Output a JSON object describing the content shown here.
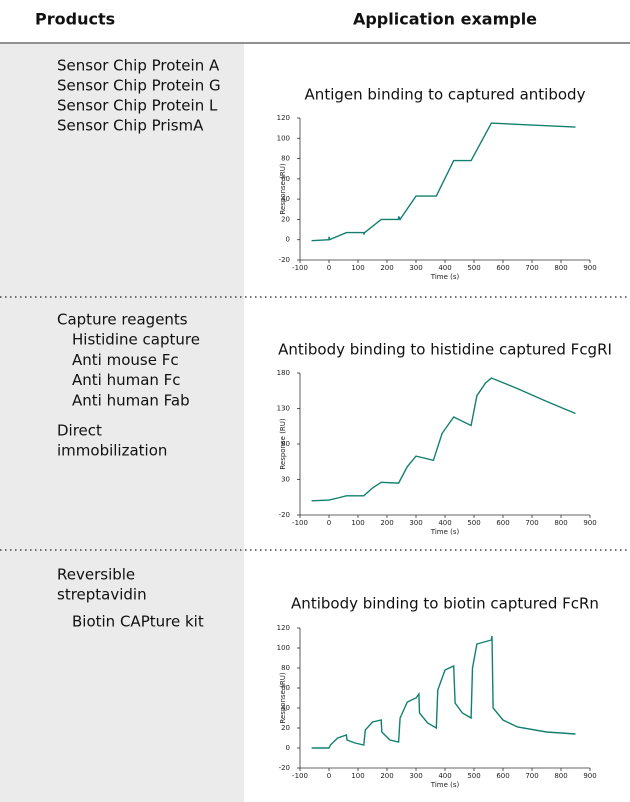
{
  "header": {
    "products": "Products",
    "application": "Application example"
  },
  "rows": [
    {
      "products": [
        {
          "lines": [
            "Sensor Chip Protein A",
            "Sensor Chip Protein G",
            "Sensor Chip Protein L",
            "Sensor Chip PrismA"
          ]
        }
      ],
      "chart": {
        "type": "line",
        "title": "Antigen binding to captured antibody",
        "xlabel": "Time (s)",
        "ylabel": "Response (RU)",
        "color": "#13806f",
        "x": [
          -60,
          0,
          0,
          2,
          60,
          120,
          120,
          123,
          180,
          240,
          240,
          245,
          300,
          370,
          430,
          490,
          560,
          850
        ],
        "values": [
          -1,
          0,
          3,
          0,
          7,
          7,
          5,
          7,
          20,
          20,
          23,
          20,
          43,
          43,
          78,
          78,
          115,
          111
        ],
        "xlim": [
          -100,
          900
        ],
        "ylim": [
          -20,
          120
        ],
        "xticks": [
          -100,
          0,
          100,
          200,
          300,
          400,
          500,
          600,
          700,
          800,
          900
        ],
        "yticks": [
          -20,
          0,
          20,
          40,
          60,
          80,
          100,
          120
        ]
      }
    },
    {
      "products": [
        {
          "lines": [
            "Capture reagents"
          ],
          "items": [
            "Histidine capture",
            "Anti mouse Fc",
            "Anti human Fc",
            "Anti human Fab"
          ]
        },
        {
          "lines": [
            "Direct",
            "immobilization"
          ]
        }
      ],
      "chart": {
        "type": "line",
        "title": "Antibody binding to histidine captured FcgRI",
        "xlabel": "Time (s)",
        "ylabel": "Response (RU)",
        "color": "#13806f",
        "x": [
          -60,
          0,
          30,
          60,
          120,
          150,
          180,
          240,
          270,
          300,
          360,
          390,
          430,
          490,
          510,
          540,
          560,
          650,
          750,
          850
        ],
        "values": [
          0,
          1,
          4,
          7,
          7,
          18,
          26,
          25,
          48,
          63,
          57,
          95,
          118,
          106,
          148,
          166,
          173,
          158,
          140,
          123
        ],
        "xlim": [
          -100,
          900
        ],
        "ylim": [
          -20,
          180
        ],
        "xticks": [
          -100,
          0,
          100,
          200,
          300,
          400,
          500,
          600,
          700,
          800,
          900
        ],
        "yticks": [
          -20,
          30,
          80,
          130,
          180
        ]
      }
    },
    {
      "products": [
        {
          "lines": [
            "Reversible",
            "streptavidin"
          ],
          "items": [
            "Biotin CAPture kit"
          ]
        }
      ],
      "chart": {
        "type": "line",
        "title": "Antibody binding to biotin captured FcRn",
        "xlabel": "Time (s)",
        "ylabel": "Response (RU)",
        "color": "#13806f",
        "x": [
          -60,
          0,
          5,
          30,
          60,
          62,
          90,
          120,
          125,
          150,
          180,
          182,
          210,
          240,
          245,
          270,
          300,
          310,
          312,
          340,
          370,
          375,
          400,
          430,
          435,
          460,
          490,
          495,
          510,
          560,
          562,
          566,
          600,
          650,
          750,
          850
        ],
        "values": [
          0,
          0,
          3,
          10,
          13,
          8,
          5,
          3,
          18,
          26,
          28,
          16,
          8,
          6,
          30,
          46,
          50,
          54,
          35,
          25,
          20,
          58,
          78,
          82,
          45,
          35,
          30,
          80,
          104,
          108,
          112,
          40,
          28,
          21,
          16,
          14
        ],
        "xlim": [
          -100,
          900
        ],
        "ylim": [
          -20,
          120
        ],
        "xticks": [
          -100,
          0,
          100,
          200,
          300,
          400,
          500,
          600,
          700,
          800,
          900
        ],
        "yticks": [
          -20,
          0,
          20,
          40,
          60,
          80,
          100,
          120
        ]
      }
    }
  ]
}
